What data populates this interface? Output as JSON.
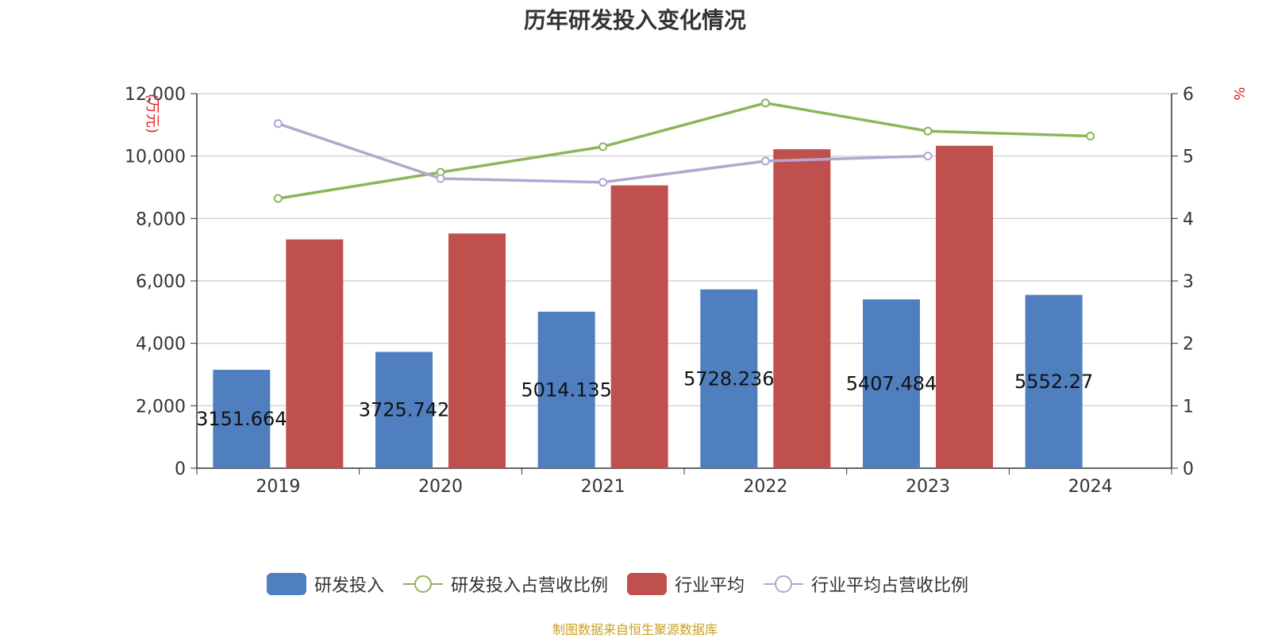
{
  "chart_data": {
    "type": "bar",
    "title": "历年研发投入变化情况",
    "categories": [
      "2019",
      "2020",
      "2021",
      "2022",
      "2023",
      "2024"
    ],
    "ylabel_left": "万元",
    "ylabel_right": "%",
    "ylim_left": [
      0,
      12000
    ],
    "ylim_right": [
      0,
      6
    ],
    "yticks_left": [
      "0",
      "2,000",
      "4,000",
      "6,000",
      "8,000",
      "10,000",
      "12,000"
    ],
    "yticks_right": [
      "0",
      "1",
      "2",
      "3",
      "4",
      "5",
      "6"
    ],
    "grid": true,
    "legend_position": "bottom",
    "series": [
      {
        "name": "研发投入",
        "kind": "bar",
        "axis": "left",
        "color": "#4f7fbe",
        "values": [
          3151.664,
          3725.742,
          5014.135,
          5728.236,
          5407.484,
          5552.27
        ],
        "labels": [
          "3151.664",
          "3725.742",
          "5014.135",
          "5728.236",
          "5407.484",
          "5552.27"
        ]
      },
      {
        "name": "研发投入占营收比例",
        "kind": "line",
        "axis": "right",
        "color": "#8db55a",
        "values": [
          4.32,
          4.74,
          5.15,
          5.85,
          5.4,
          5.32
        ]
      },
      {
        "name": "行业平均",
        "kind": "bar",
        "axis": "left",
        "color": "#c0504d",
        "values": [
          7330,
          7520,
          9060,
          10220,
          10330,
          null
        ]
      },
      {
        "name": "行业平均占营收比例",
        "kind": "line",
        "axis": "right",
        "color": "#b3a6d1",
        "values": [
          5.52,
          4.64,
          4.58,
          4.92,
          5.0,
          null
        ]
      }
    ],
    "source": "制图数据来自恒生聚源数据库"
  }
}
